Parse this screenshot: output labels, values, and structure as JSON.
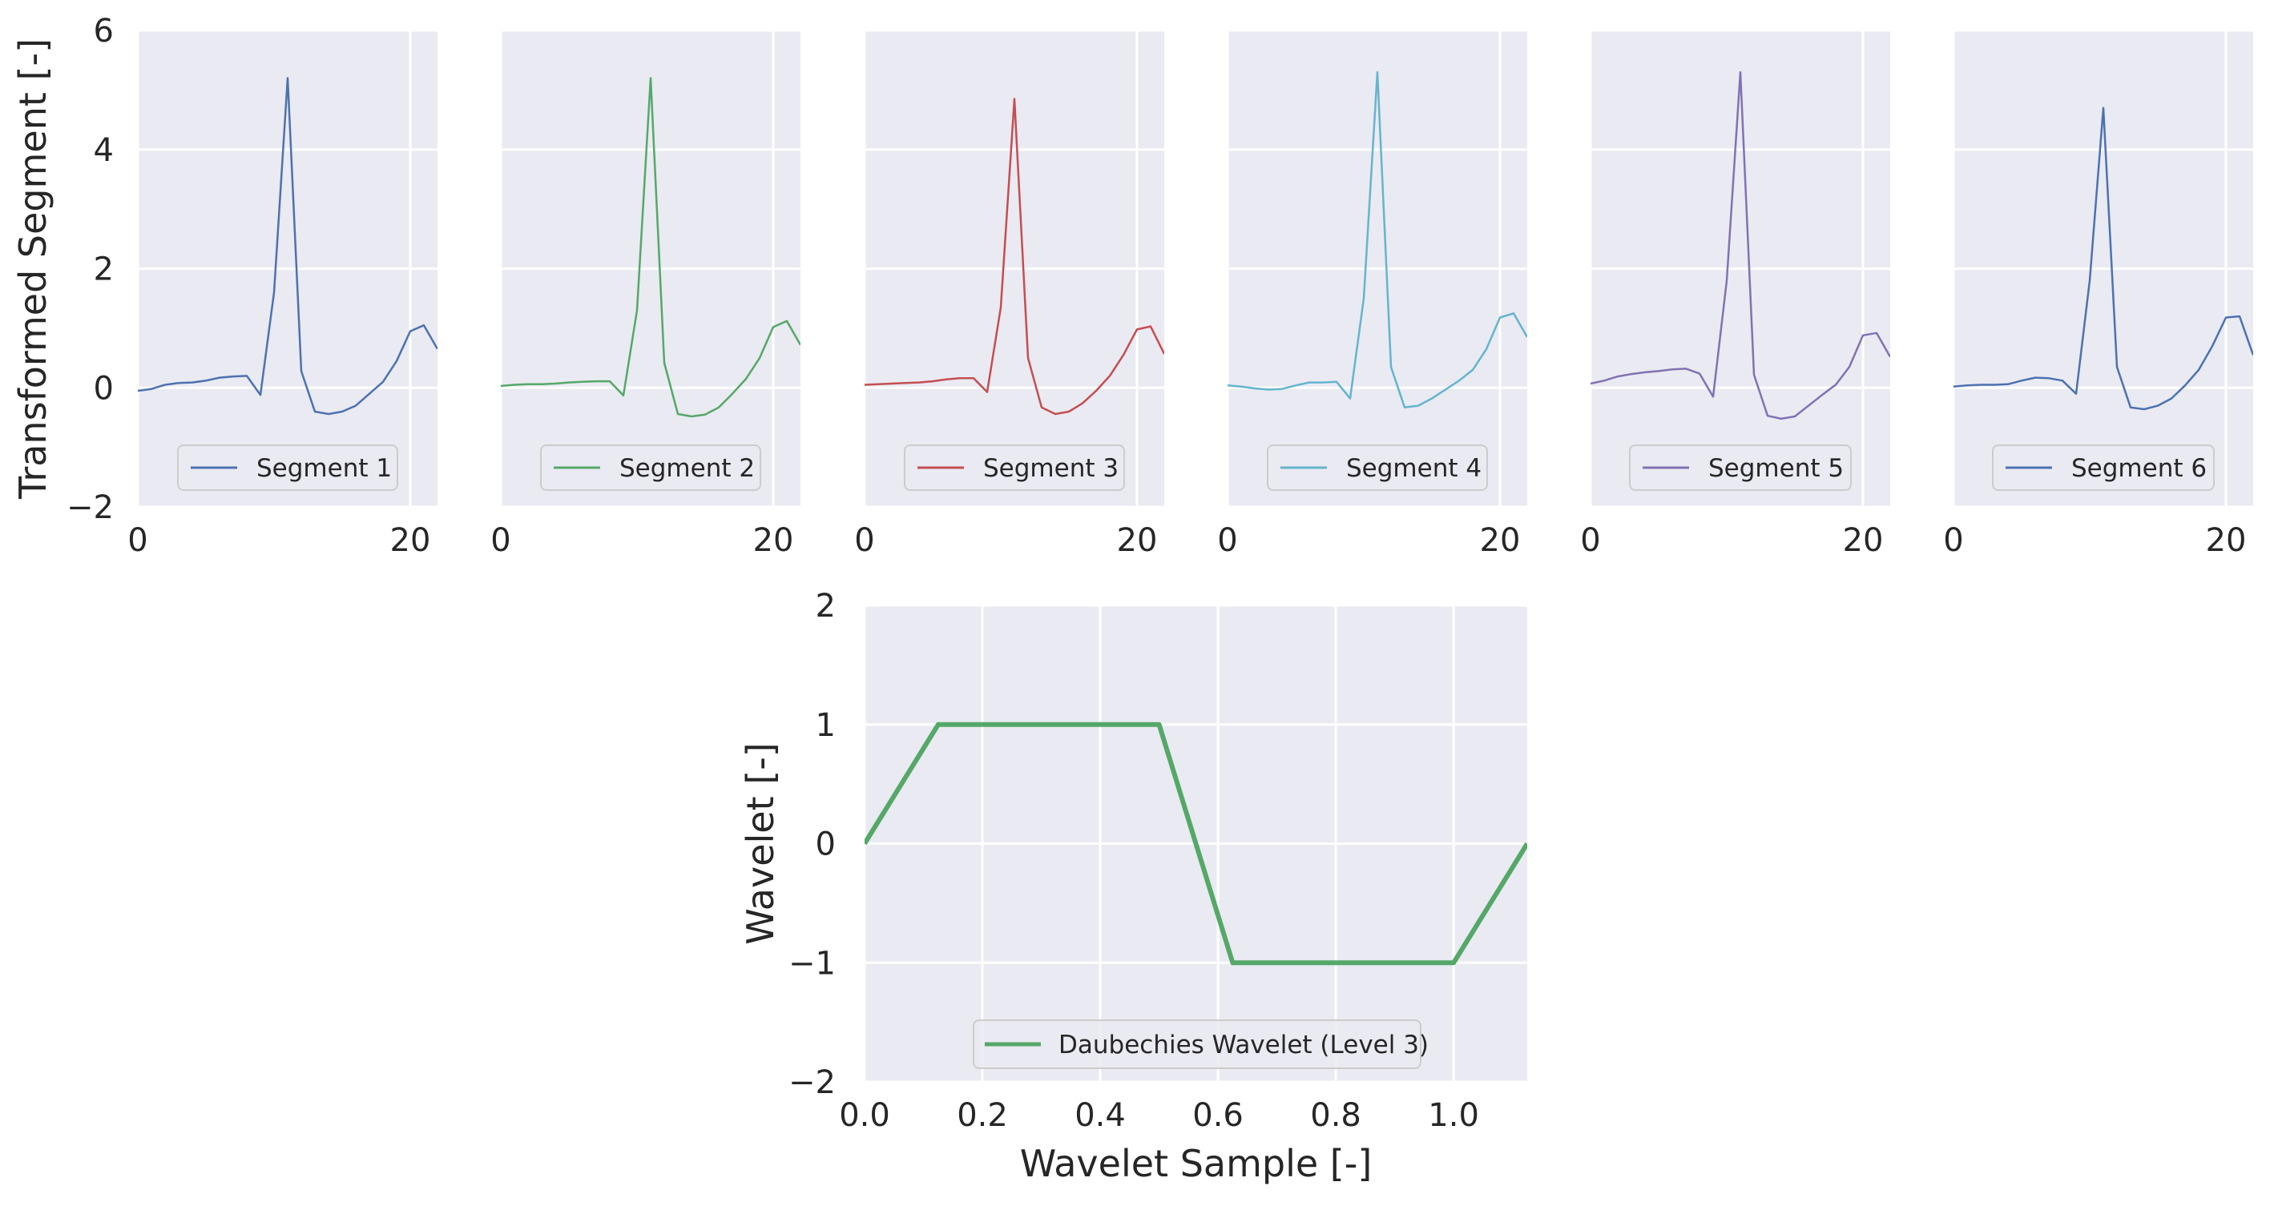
{
  "chart_data": [
    {
      "type": "line",
      "name": "segment-1",
      "legend": "Segment 1",
      "color": "#4c72b0",
      "x": [
        0,
        1,
        2,
        3,
        4,
        5,
        6,
        7,
        8,
        9,
        10,
        11,
        12,
        13,
        14,
        15,
        16,
        17,
        18,
        19,
        20,
        21,
        22
      ],
      "values": [
        -0.05,
        -0.02,
        0.05,
        0.08,
        0.09,
        0.12,
        0.17,
        0.19,
        0.2,
        -0.12,
        1.6,
        5.2,
        0.28,
        -0.4,
        -0.44,
        -0.4,
        -0.3,
        -0.1,
        0.1,
        0.45,
        0.95,
        1.05,
        0.65
      ],
      "xlim": [
        0,
        22
      ],
      "ylim": [
        -2,
        6
      ],
      "xticks": [
        "0",
        "20"
      ],
      "yticks": [
        "6",
        "4",
        "2",
        "0",
        "−2"
      ],
      "ylabel": "Transformed Segment [-]",
      "legend_loc": "lower center"
    },
    {
      "type": "line",
      "name": "segment-2",
      "legend": "Segment 2",
      "color": "#55a868",
      "x": [
        0,
        1,
        2,
        3,
        4,
        5,
        6,
        7,
        8,
        9,
        10,
        11,
        12,
        13,
        14,
        15,
        16,
        17,
        18,
        19,
        20,
        21,
        22
      ],
      "values": [
        0.03,
        0.05,
        0.06,
        0.06,
        0.07,
        0.09,
        0.1,
        0.11,
        0.11,
        -0.13,
        1.3,
        5.2,
        0.42,
        -0.44,
        -0.48,
        -0.45,
        -0.33,
        -0.1,
        0.15,
        0.5,
        1.02,
        1.12,
        0.72
      ],
      "xlim": [
        0,
        22
      ],
      "ylim": [
        -2,
        6
      ],
      "xticks": [
        "0",
        "20"
      ],
      "legend_loc": "lower center"
    },
    {
      "type": "line",
      "name": "segment-3",
      "legend": "Segment 3",
      "color": "#c44e52",
      "x": [
        0,
        1,
        2,
        3,
        4,
        5,
        6,
        7,
        8,
        9,
        10,
        11,
        12,
        13,
        14,
        15,
        16,
        17,
        18,
        19,
        20,
        21,
        22
      ],
      "values": [
        0.05,
        0.06,
        0.07,
        0.08,
        0.09,
        0.11,
        0.14,
        0.16,
        0.16,
        -0.07,
        1.35,
        4.85,
        0.5,
        -0.33,
        -0.44,
        -0.4,
        -0.26,
        -0.05,
        0.2,
        0.55,
        0.98,
        1.03,
        0.57
      ],
      "xlim": [
        0,
        22
      ],
      "ylim": [
        -2,
        6
      ],
      "xticks": [
        "0",
        "20"
      ],
      "legend_loc": "lower center"
    },
    {
      "type": "line",
      "name": "segment-4",
      "legend": "Segment 4",
      "color": "#64b5cd",
      "x": [
        0,
        1,
        2,
        3,
        4,
        5,
        6,
        7,
        8,
        9,
        10,
        11,
        12,
        13,
        14,
        15,
        16,
        17,
        18,
        19,
        20,
        21,
        22
      ],
      "values": [
        0.04,
        0.02,
        -0.01,
        -0.03,
        -0.02,
        0.04,
        0.09,
        0.09,
        0.1,
        -0.18,
        1.5,
        5.3,
        0.35,
        -0.33,
        -0.3,
        -0.18,
        -0.03,
        0.12,
        0.3,
        0.65,
        1.18,
        1.25,
        0.85
      ],
      "xlim": [
        0,
        22
      ],
      "ylim": [
        -2,
        6
      ],
      "xticks": [
        "0",
        "20"
      ],
      "legend_loc": "lower center"
    },
    {
      "type": "line",
      "name": "segment-5",
      "legend": "Segment 5",
      "color": "#8172b3",
      "x": [
        0,
        1,
        2,
        3,
        4,
        5,
        6,
        7,
        8,
        9,
        10,
        11,
        12,
        13,
        14,
        15,
        16,
        17,
        18,
        19,
        20,
        21,
        22
      ],
      "values": [
        0.07,
        0.12,
        0.19,
        0.23,
        0.26,
        0.28,
        0.31,
        0.32,
        0.24,
        -0.15,
        1.8,
        5.3,
        0.22,
        -0.47,
        -0.52,
        -0.48,
        -0.3,
        -0.12,
        0.05,
        0.35,
        0.88,
        0.92,
        0.52
      ],
      "xlim": [
        0,
        22
      ],
      "ylim": [
        -2,
        6
      ],
      "xticks": [
        "0",
        "20"
      ],
      "legend_loc": "lower center"
    },
    {
      "type": "line",
      "name": "segment-6",
      "legend": "Segment 6",
      "color": "#4c72b0",
      "x": [
        0,
        1,
        2,
        3,
        4,
        5,
        6,
        7,
        8,
        9,
        10,
        11,
        12,
        13,
        14,
        15,
        16,
        17,
        18,
        19,
        20,
        21,
        22
      ],
      "values": [
        0.02,
        0.04,
        0.05,
        0.05,
        0.06,
        0.12,
        0.17,
        0.16,
        0.12,
        -0.1,
        1.8,
        4.7,
        0.35,
        -0.33,
        -0.36,
        -0.3,
        -0.18,
        0.04,
        0.3,
        0.7,
        1.18,
        1.2,
        0.55
      ],
      "xlim": [
        0,
        22
      ],
      "ylim": [
        -2,
        6
      ],
      "xticks": [
        "0",
        "20"
      ],
      "legend_loc": "lower center"
    },
    {
      "type": "line",
      "name": "wavelet",
      "legend": "Daubechies Wavelet (Level 3)",
      "color": "#55a868",
      "x": [
        0,
        0.125,
        0.25,
        0.375,
        0.5,
        0.625,
        0.75,
        0.875,
        1.0,
        1.125
      ],
      "values": [
        0,
        1,
        1,
        1,
        1,
        -1,
        -1,
        -1,
        -1,
        0
      ],
      "xlim": [
        0,
        1.125
      ],
      "ylim": [
        -2,
        2
      ],
      "xticks": [
        "0.0",
        "0.2",
        "0.4",
        "0.6",
        "0.8",
        "1.0"
      ],
      "xtick_values": [
        0,
        0.2,
        0.4,
        0.6,
        0.8,
        1.0
      ],
      "yticks": [
        "2",
        "1",
        "0",
        "−1",
        "−2"
      ],
      "ytick_values": [
        2,
        1,
        0,
        -1,
        -2
      ],
      "xlabel": "Wavelet Sample [-]",
      "ylabel": "Wavelet [-]",
      "legend_loc": "lower center"
    }
  ],
  "colors": {
    "panel_background": "#eaeaf2",
    "grid": "#ffffff",
    "text": "#262626"
  }
}
